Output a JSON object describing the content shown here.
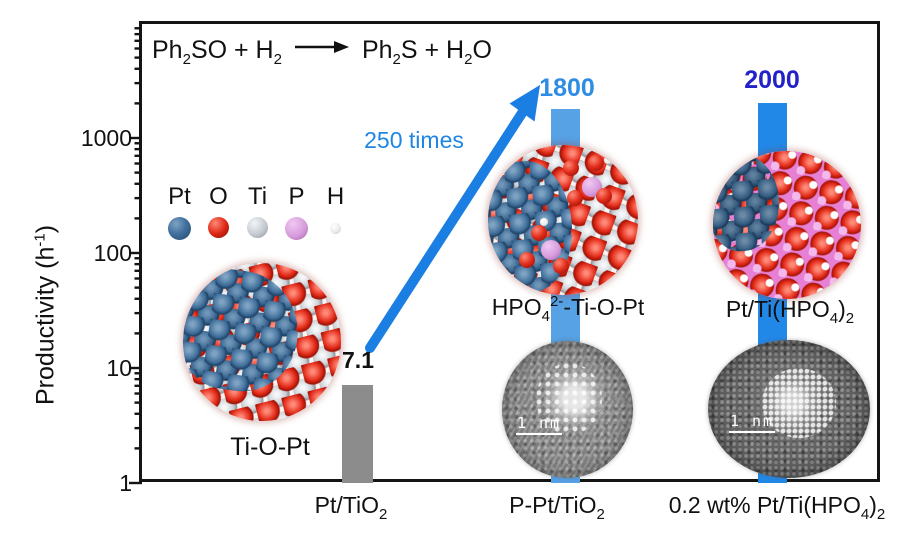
{
  "figure": {
    "equation": {
      "p1": "Ph",
      "s1": "2",
      "p2": "SO + H",
      "s2": "2",
      "p3": "Ph",
      "s3": "2",
      "p4": "S + H",
      "s4": "2",
      "p5": "O"
    },
    "y_axis": {
      "title_pre": "Productivity (h",
      "title_sup": "-1",
      "title_post": ")",
      "ticks": [
        "1",
        "10",
        "100",
        "1000"
      ]
    },
    "legend": {
      "items": [
        {
          "symbol": "Pt",
          "color": "#3f6e9c"
        },
        {
          "symbol": "O",
          "color": "#e02b19"
        },
        {
          "symbol": "Ti",
          "color": "#ccd1d6"
        },
        {
          "symbol": "P",
          "color": "#dca2e2"
        },
        {
          "symbol": "H",
          "color": "#f4f4f4"
        }
      ]
    },
    "annotation": {
      "fold": "250 times"
    },
    "site_labels": {
      "left": "Ti-O-Pt",
      "mid_pre": "HPO",
      "mid_sub": "4",
      "mid_sup": "2-",
      "mid_post": "-Ti-O-Pt",
      "right_pre": "Pt/Ti(HPO",
      "right_sub1": "4",
      "right_mid": ")",
      "right_sub2": "2"
    },
    "x_labels": {
      "l1_main": "Pt/TiO",
      "l1_sub": "2",
      "l2_main": "P-Pt/TiO",
      "l2_sub": "2",
      "l3_pre": "0.2 wt% Pt/Ti(HPO",
      "l3_sub1": "4",
      "l3_mid": ")",
      "l3_sub2": "2"
    },
    "tem": {
      "scale_label": "1 nm"
    }
  },
  "chart_data": {
    "type": "bar",
    "title": "Ph₂SO + H₂ → Ph₂S + H₂O",
    "categories": [
      "Pt/TiO₂",
      "P-Pt/TiO₂",
      "0.2 wt% Pt/Ti(HPO₄)₂"
    ],
    "values": [
      7.1,
      1800,
      2000
    ],
    "bar_colors": [
      "#8c8c8c",
      "#57a1e5",
      "#2288e8"
    ],
    "value_label_colors": [
      "#111111",
      "#2e8ce4",
      "#2222c8"
    ],
    "ylabel": "Productivity (h⁻¹)",
    "yscale": "log",
    "ylim": [
      1,
      10000
    ],
    "yticks": [
      1,
      10,
      100,
      1000
    ],
    "grid": false,
    "legend_position": "upper left inside",
    "annotations": [
      "250 times",
      "Ti-O-Pt",
      "HPO₄²⁻-Ti-O-Pt",
      "Pt/Ti(HPO₄)₂",
      "1 nm",
      "1 nm"
    ],
    "legend_atoms": [
      "Pt",
      "O",
      "Ti",
      "P",
      "H"
    ],
    "arrow": {
      "from_category": "Pt/TiO₂",
      "to_category": "P-Pt/TiO₂",
      "label": "250 times",
      "color": "#1b7ee2"
    }
  }
}
